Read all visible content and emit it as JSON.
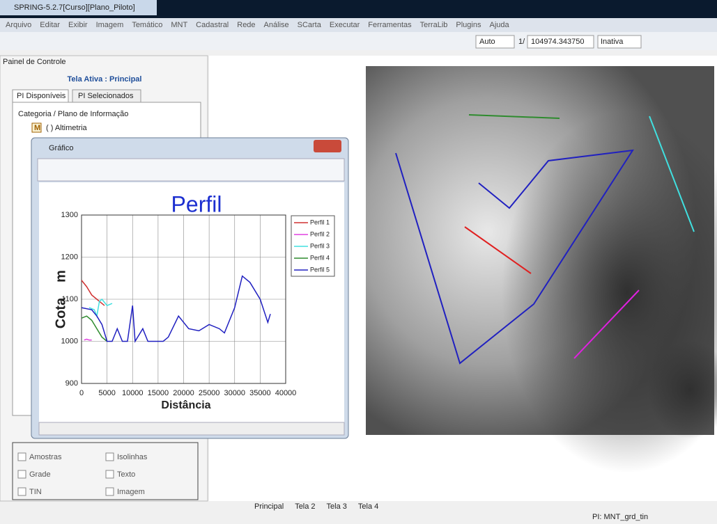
{
  "window_title": "SPRING-5.2.7[Curso][Plano_Piloto]",
  "menu": [
    "Arquivo",
    "Editar",
    "Exibir",
    "Imagem",
    "Temático",
    "MNT",
    "Cadastral",
    "Rede",
    "Análise",
    "SCarta",
    "Executar",
    "Ferramentas",
    "TerraLib",
    "Plugins",
    "Ajuda"
  ],
  "toolbar": {
    "scale_mode": "Auto",
    "scale_prefix": "1/",
    "scale": "104974.343750",
    "mode": "Inativa"
  },
  "panel": {
    "title": "Painel de Controle",
    "active": "Tela Ativa : Principal",
    "tabs": [
      "PI Disponíveis",
      "PI Selecionados"
    ],
    "tree_header": "Categoria / Plano de Informação",
    "category_icon": "M",
    "category": "( ) Altimetria",
    "options": [
      "Amostras",
      "Isolinhas",
      "Grade",
      "Texto",
      "TIN",
      "Imagem"
    ]
  },
  "graph_window": {
    "title": "Gráfico"
  },
  "chart_data": {
    "type": "line",
    "title": "Perfil",
    "x_label": "Distância",
    "y_label": "Cota",
    "y_unit": "m",
    "xlim": [
      0,
      40000
    ],
    "xticks": [
      0,
      5000,
      10000,
      15000,
      20000,
      25000,
      30000,
      35000,
      40000
    ],
    "ylim": [
      900,
      1300
    ],
    "yticks": [
      900,
      1000,
      1100,
      1200,
      1300
    ],
    "grid": true,
    "legend": "right",
    "series": [
      {
        "name": "Perfil 1",
        "color": "#d03030",
        "x": [
          0,
          1000,
          2000,
          3000,
          4000,
          4500
        ],
        "values": [
          1145,
          1130,
          1110,
          1100,
          1090,
          1085
        ]
      },
      {
        "name": "Perfil 2",
        "color": "#e040e0",
        "x": [
          500,
          1000,
          1500,
          2000
        ],
        "values": [
          1003,
          1005,
          1003,
          1003
        ]
      },
      {
        "name": "Perfil 3",
        "color": "#40e0e0",
        "x": [
          1500,
          2500,
          3000,
          3500,
          4000,
          5000,
          6000
        ],
        "values": [
          1080,
          1075,
          1060,
          1095,
          1100,
          1085,
          1090
        ]
      },
      {
        "name": "Perfil 4",
        "color": "#2e8b2e",
        "x": [
          0,
          1000,
          2000,
          3000,
          4000,
          5000
        ],
        "values": [
          1055,
          1060,
          1050,
          1030,
          1010,
          1000
        ]
      },
      {
        "name": "Perfil 5",
        "color": "#2020c0",
        "x": [
          0,
          2000,
          3000,
          4000,
          5000,
          6000,
          7000,
          8000,
          9000,
          10000,
          10500,
          12000,
          13000,
          16000,
          17000,
          19000,
          21000,
          23000,
          25000,
          27000,
          28000,
          30000,
          31500,
          33000,
          35000,
          36500,
          37000
        ],
        "values": [
          1080,
          1075,
          1060,
          1040,
          1000,
          1000,
          1030,
          1000,
          1000,
          1085,
          1000,
          1030,
          1000,
          1000,
          1010,
          1060,
          1030,
          1025,
          1040,
          1030,
          1020,
          1080,
          1155,
          1140,
          1100,
          1045,
          1065
        ]
      }
    ]
  },
  "view_tabs": [
    "Principal",
    "Tela 2",
    "Tela 3",
    "Tela 4"
  ],
  "status": "PI: MNT_grd_tin"
}
